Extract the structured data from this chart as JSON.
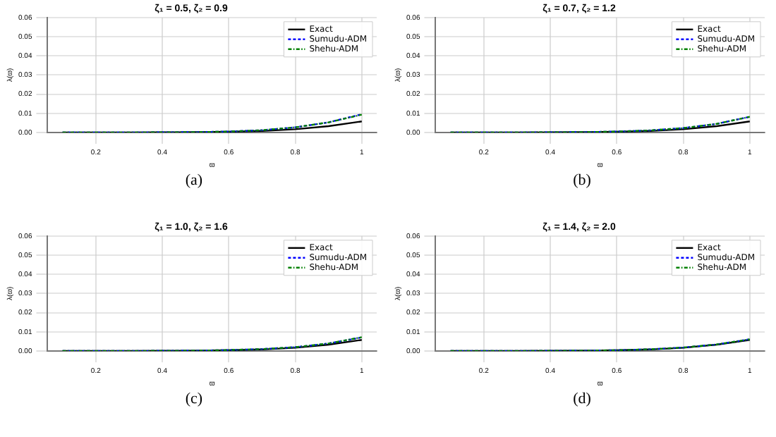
{
  "chart_data": [
    {
      "type": "line",
      "title": "ζ₁ = 0.5, ζ₂ = 0.9",
      "xlabel": "ϖ",
      "ylabel": "λ(ϖ)",
      "x": [
        0.1,
        0.2,
        0.3,
        0.4,
        0.5,
        0.6,
        0.7,
        0.8,
        0.9,
        1.0
      ],
      "xlim": [
        0.055,
        1.045
      ],
      "xticks": [
        0.2,
        0.4,
        0.6,
        0.8,
        1.0
      ],
      "ylim": [
        0,
        0.06
      ],
      "yticks": [
        {
          "value": 0,
          "label": "0.00"
        },
        {
          "value": 0.01,
          "label": "0.01"
        },
        {
          "value": 0.02,
          "label": "0.02"
        },
        {
          "value": 0.03,
          "label": "0.03"
        },
        {
          "value": 0.04,
          "label": "0.04"
        },
        {
          "value": 0.05,
          "label": "0.05"
        },
        {
          "value": 0.06,
          "label": "0.06"
        }
      ],
      "grid": true,
      "legend": "top right",
      "annotations": [
        "(a)"
      ],
      "series": [
        {
          "name": "Exact",
          "color": "#000000",
          "line_style": "solid",
          "values": [
            0,
            0,
            0,
            0.0001,
            0.0002,
            0.0004,
            0.0008,
            0.0017,
            0.0033,
            0.0058
          ]
        },
        {
          "name": "Sumudu-ADM",
          "color": "#0000ff",
          "line_style": "dashed",
          "values": [
            0,
            0,
            0,
            0.0001,
            0.0002,
            0.0005,
            0.0012,
            0.0027,
            0.0053,
            0.0095
          ]
        },
        {
          "name": "Shehu-ADM",
          "color": "#008000",
          "line_style": "dashdot",
          "values": [
            0,
            0,
            0,
            0.0001,
            0.0002,
            0.0005,
            0.0012,
            0.0027,
            0.0053,
            0.0093
          ]
        }
      ]
    },
    {
      "type": "line",
      "title": "ζ₁ = 0.7, ζ₂ = 1.2",
      "xlabel": "ϖ",
      "ylabel": "λ(ϖ)",
      "x": [
        0.1,
        0.2,
        0.3,
        0.4,
        0.5,
        0.6,
        0.7,
        0.8,
        0.9,
        1.0
      ],
      "xlim": [
        0.055,
        1.045
      ],
      "xticks": [
        0.2,
        0.4,
        0.6,
        0.8,
        1.0
      ],
      "ylim": [
        0,
        0.06
      ],
      "yticks": [
        {
          "value": 0,
          "label": "0.00"
        },
        {
          "value": 0.01,
          "label": "0.01"
        },
        {
          "value": 0.02,
          "label": "0.02"
        },
        {
          "value": 0.03,
          "label": "0.03"
        },
        {
          "value": 0.04,
          "label": "0.04"
        },
        {
          "value": 0.05,
          "label": "0.05"
        },
        {
          "value": 0.06,
          "label": "0.06"
        }
      ],
      "grid": true,
      "legend": "top right",
      "annotations": [
        "(b)"
      ],
      "series": [
        {
          "name": "Exact",
          "color": "#000000",
          "line_style": "solid",
          "values": [
            0,
            0,
            0,
            0.0001,
            0.0002,
            0.0004,
            0.0008,
            0.0017,
            0.0033,
            0.0058
          ]
        },
        {
          "name": "Sumudu-ADM",
          "color": "#0000ff",
          "line_style": "dashed",
          "values": [
            0,
            0,
            0,
            0.0001,
            0.0002,
            0.0005,
            0.0011,
            0.0023,
            0.0045,
            0.0082
          ]
        },
        {
          "name": "Shehu-ADM",
          "color": "#008000",
          "line_style": "dashdot",
          "values": [
            0,
            0,
            0,
            0.0001,
            0.0002,
            0.0005,
            0.0011,
            0.0023,
            0.0045,
            0.0082
          ]
        }
      ]
    },
    {
      "type": "line",
      "title": "ζ₁ = 1.0, ζ₂ = 1.6",
      "xlabel": "ϖ",
      "ylabel": "λ(ϖ)",
      "x": [
        0.1,
        0.2,
        0.3,
        0.4,
        0.5,
        0.6,
        0.7,
        0.8,
        0.9,
        1.0
      ],
      "xlim": [
        0.055,
        1.045
      ],
      "xticks": [
        0.2,
        0.4,
        0.6,
        0.8,
        1.0
      ],
      "ylim": [
        0,
        0.06
      ],
      "yticks": [
        {
          "value": 0,
          "label": "0.00"
        },
        {
          "value": 0.01,
          "label": "0.01"
        },
        {
          "value": 0.02,
          "label": "0.02"
        },
        {
          "value": 0.03,
          "label": "0.03"
        },
        {
          "value": 0.04,
          "label": "0.04"
        },
        {
          "value": 0.05,
          "label": "0.05"
        },
        {
          "value": 0.06,
          "label": "0.06"
        }
      ],
      "grid": true,
      "legend": "top right",
      "annotations": [
        "(c)"
      ],
      "series": [
        {
          "name": "Exact",
          "color": "#000000",
          "line_style": "solid",
          "values": [
            0,
            0,
            0,
            0.0001,
            0.0002,
            0.0004,
            0.0008,
            0.0017,
            0.0033,
            0.0058
          ]
        },
        {
          "name": "Sumudu-ADM",
          "color": "#0000ff",
          "line_style": "dashed",
          "values": [
            0,
            0,
            0,
            0.0001,
            0.0002,
            0.0005,
            0.001,
            0.002,
            0.0039,
            0.0071
          ]
        },
        {
          "name": "Shehu-ADM",
          "color": "#008000",
          "line_style": "dashdot",
          "values": [
            0,
            0,
            0,
            0.0001,
            0.0002,
            0.0005,
            0.001,
            0.002,
            0.0039,
            0.0072
          ]
        }
      ]
    },
    {
      "type": "line",
      "title": "ζ₁ = 1.4, ζ₂ = 2.0",
      "xlabel": "ϖ",
      "ylabel": "λ(ϖ)",
      "x": [
        0.1,
        0.2,
        0.3,
        0.4,
        0.5,
        0.6,
        0.7,
        0.8,
        0.9,
        1.0
      ],
      "xlim": [
        0.055,
        1.045
      ],
      "xticks": [
        0.2,
        0.4,
        0.6,
        0.8,
        1.0
      ],
      "ylim": [
        0,
        0.06
      ],
      "yticks": [
        {
          "value": 0,
          "label": "0.00"
        },
        {
          "value": 0.01,
          "label": "0.01"
        },
        {
          "value": 0.02,
          "label": "0.02"
        },
        {
          "value": 0.03,
          "label": "0.03"
        },
        {
          "value": 0.04,
          "label": "0.04"
        },
        {
          "value": 0.05,
          "label": "0.05"
        },
        {
          "value": 0.06,
          "label": "0.06"
        }
      ],
      "grid": true,
      "legend": "top right",
      "annotations": [
        "(d)"
      ],
      "series": [
        {
          "name": "Exact",
          "color": "#000000",
          "line_style": "solid",
          "values": [
            0,
            0,
            0,
            0.0001,
            0.0002,
            0.0004,
            0.0008,
            0.0017,
            0.0033,
            0.0058
          ]
        },
        {
          "name": "Sumudu-ADM",
          "color": "#0000ff",
          "line_style": "dashed",
          "values": [
            0,
            0,
            0,
            0.0001,
            0.0002,
            0.0004,
            0.0009,
            0.0018,
            0.0034,
            0.0061
          ]
        },
        {
          "name": "Shehu-ADM",
          "color": "#008000",
          "line_style": "dashdot",
          "values": [
            0,
            0,
            0,
            0.0001,
            0.0002,
            0.0004,
            0.0009,
            0.0018,
            0.0034,
            0.0061
          ]
        }
      ]
    }
  ]
}
